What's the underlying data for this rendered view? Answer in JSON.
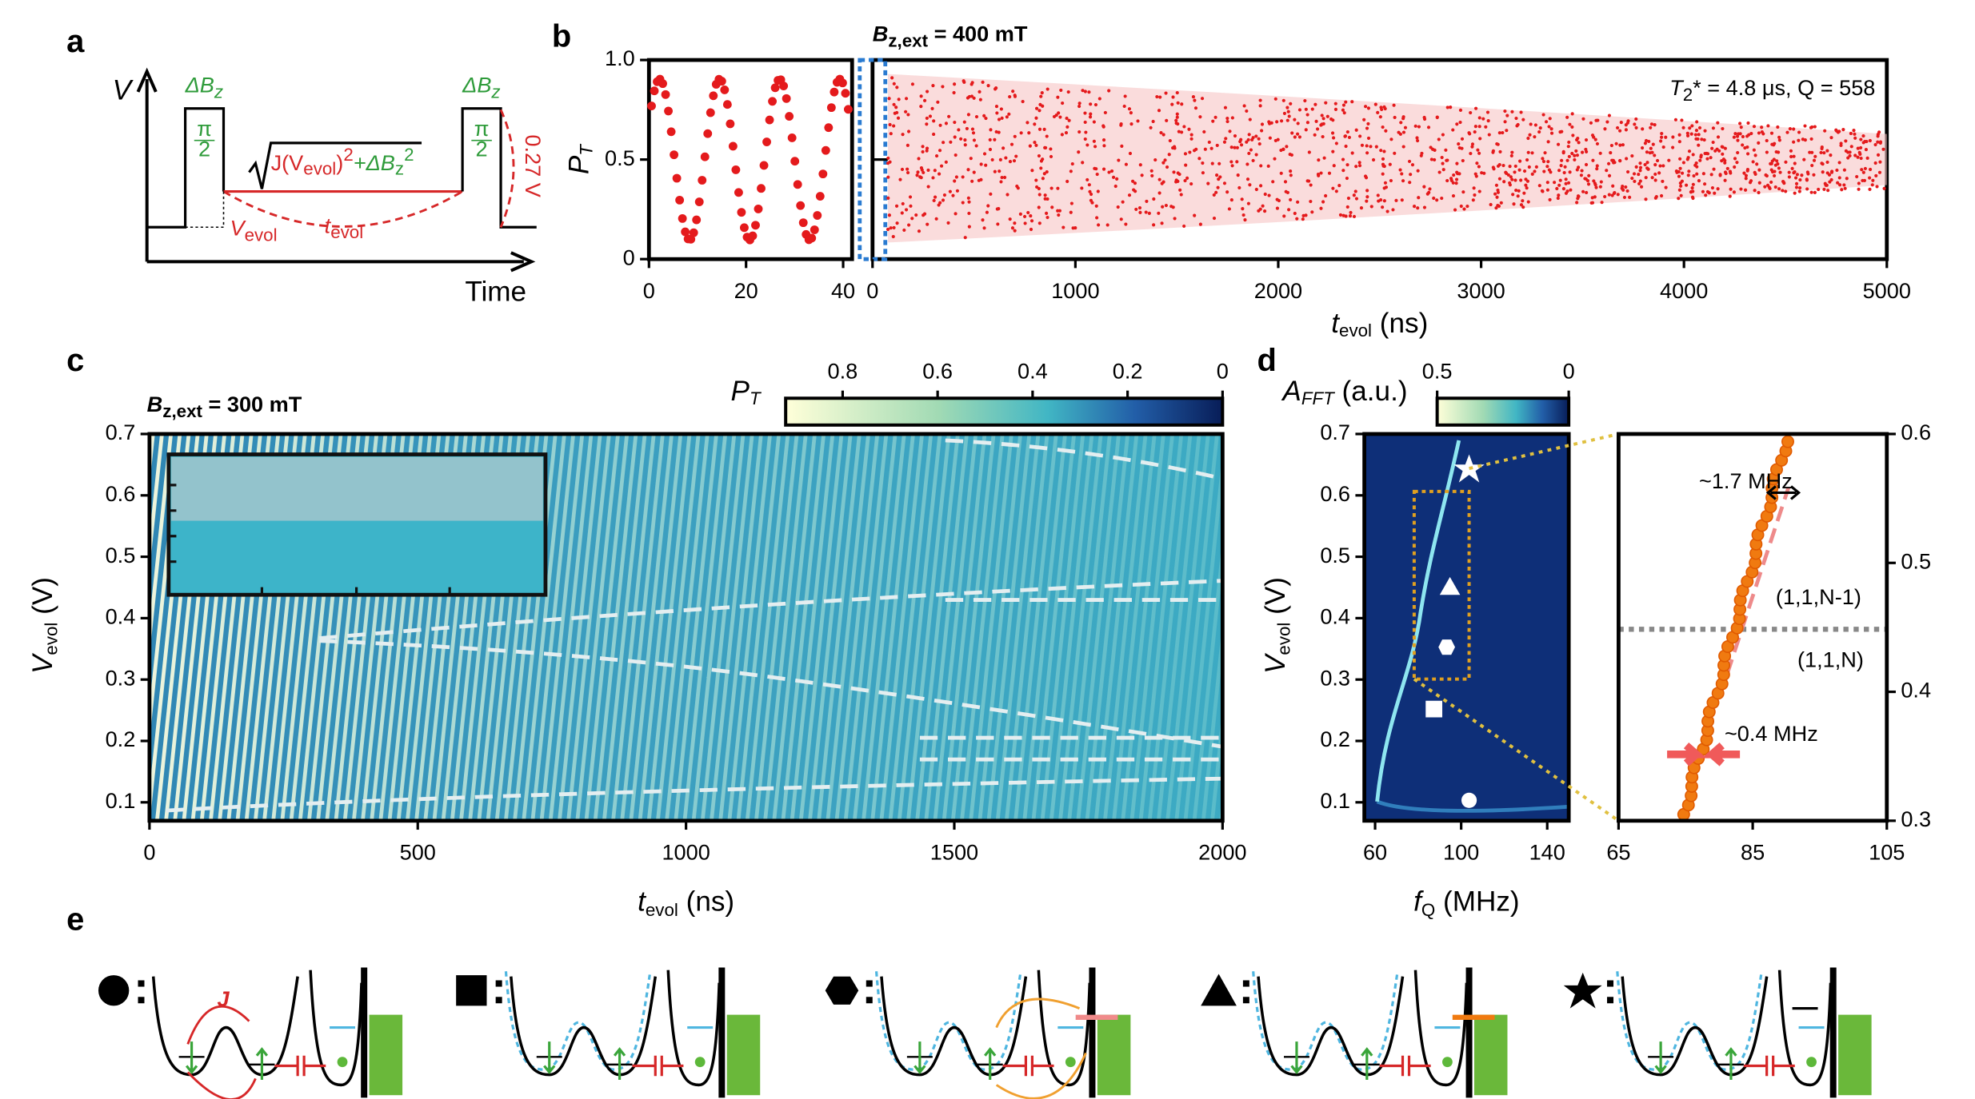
{
  "panels": {
    "a": {
      "label": "a",
      "ylabel": "V",
      "xlabel": "Time",
      "dbz_left": [
        "ΔB",
        "z"
      ],
      "dbz_right": [
        "ΔB",
        "z"
      ],
      "pi_left": [
        "π",
        "2"
      ],
      "pi_right": [
        "π",
        "2"
      ],
      "formula": [
        "J(V",
        "evol",
        ")",
        "2",
        "+ΔB",
        "z",
        "2"
      ],
      "vevol": [
        "V",
        "evol"
      ],
      "tevol": [
        "t",
        "evol"
      ],
      "amplitude": "0.27 V"
    },
    "b": {
      "label": "b",
      "title": [
        "B",
        "z,ext",
        " = 400 mT"
      ],
      "ylabel": [
        "P",
        "T"
      ],
      "ylim": [
        0,
        1
      ],
      "yticks": [
        0,
        0.5,
        {
          "value": 1,
          "label": "1.0"
        }
      ],
      "xlim_left": [
        0,
        40
      ],
      "xticks_left": [
        0,
        20,
        40
      ],
      "xlim": [
        0,
        5000
      ],
      "xticks": [
        0,
        1000,
        2000,
        3000,
        4000,
        5000
      ],
      "xlabel": [
        "t",
        "evol",
        " (ns)"
      ],
      "annotation": [
        "T",
        "2",
        "* = 4.8 μs, Q = 558"
      ]
    },
    "c": {
      "label": "c",
      "title": [
        "B",
        "z,ext",
        " = 300 mT"
      ],
      "ylabel": [
        "V",
        "evol",
        " (V)"
      ],
      "xlabel": [
        "t",
        "evol",
        " (ns)"
      ],
      "xlim": [
        0,
        2000
      ],
      "xticks": [
        0,
        500,
        1000,
        1500,
        2000
      ],
      "ylim": [
        0.07,
        0.7
      ],
      "yticks": [
        0.1,
        0.2,
        0.3,
        0.4,
        0.5,
        0.6,
        0.7
      ],
      "colorbar_label": [
        "P",
        "T"
      ],
      "clim": [
        0,
        0.92
      ],
      "cticks": [
        0.8,
        0.6,
        0.4,
        0.2,
        0
      ]
    },
    "d": {
      "label": "d",
      "ylabel": [
        "V",
        "evol",
        " (V)"
      ],
      "xlabel": [
        "f",
        "Q",
        " (MHz)"
      ],
      "xlim": [
        55,
        150
      ],
      "xticks": [
        60,
        100,
        140
      ],
      "ylim": [
        0.07,
        0.7
      ],
      "yticks": [
        0.1,
        0.2,
        0.3,
        0.4,
        0.5,
        0.6,
        0.7
      ],
      "colorbar_label": [
        "A",
        "FFT",
        " (a.u.)"
      ],
      "clim": [
        0,
        0.5
      ],
      "cticks": [
        0.5,
        0
      ],
      "zoom_xlim": [
        65,
        105
      ],
      "zoom_xticks": [
        65,
        85,
        105
      ],
      "zoom_y2lim": [
        0.3,
        0.6
      ],
      "zoom_y2ticks": [
        0.3,
        0.4,
        0.5,
        0.6
      ],
      "upper_state": "(1,1,N-1)",
      "lower_state": "(1,1,N)",
      "width_top": "~1.7 MHz",
      "width_bottom": "~0.4 MHz"
    },
    "e": {
      "label": "e",
      "coupling": "J"
    }
  }
}
